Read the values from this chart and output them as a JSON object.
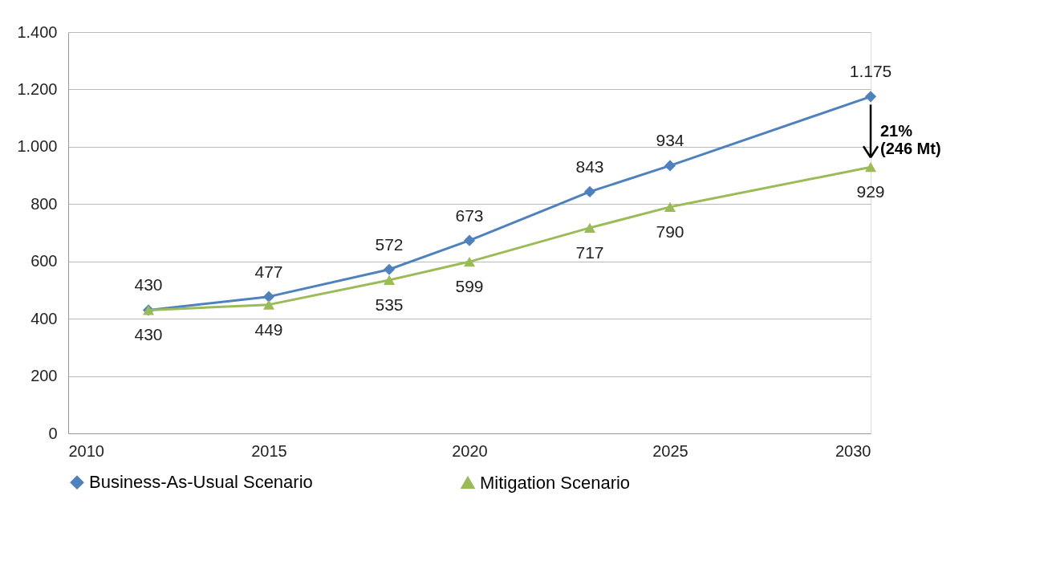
{
  "chart_data": {
    "type": "line",
    "x": [
      2012,
      2015,
      2018,
      2020,
      2023,
      2025,
      2030
    ],
    "series": [
      {
        "name": "Business-As-Usual Scenario",
        "color": "#4f81bd",
        "marker": "diamond",
        "values": [
          430,
          477,
          572,
          673,
          843,
          934,
          1175
        ],
        "value_labels": [
          "430",
          "477",
          "572",
          "673",
          "843",
          "934",
          "1.175"
        ]
      },
      {
        "name": "Mitigation Scenario",
        "color": "#9bbb59",
        "marker": "triangle",
        "values": [
          430,
          449,
          535,
          599,
          717,
          790,
          929
        ],
        "value_labels": [
          "430",
          "449",
          "535",
          "599",
          "717",
          "790",
          "929"
        ]
      }
    ],
    "xlim": [
      2010,
      2030
    ],
    "xticks": [
      2010,
      2015,
      2020,
      2025,
      2030
    ],
    "ylim": [
      0,
      1400
    ],
    "yticks": [
      0,
      200,
      400,
      600,
      800,
      {
        "value": 1000,
        "label": "1.000"
      },
      {
        "value": 1200,
        "label": "1.200"
      },
      {
        "value": 1400,
        "label": "1.400"
      }
    ],
    "grid": "y",
    "legend": "bottom",
    "annotations": [
      "21%\n(246 Mt)"
    ]
  }
}
